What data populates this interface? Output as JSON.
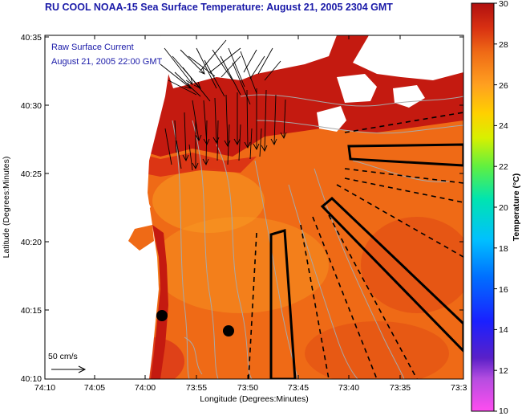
{
  "title": "RU COOL  NOAA-15  Sea Surface Temperature:  August 21, 2005 2304 GMT",
  "legend": {
    "line1": "Raw Surface Current",
    "line2": "August 21, 2005 22:00 GMT",
    "scale_label": "50 cm/s"
  },
  "x_axis": {
    "label": "Longitude (Degrees:Minutes)",
    "ticks": [
      "74:10",
      "74:05",
      "74:00",
      "73:55",
      "73:50",
      "73:45",
      "73:40",
      "73:35",
      "73:3"
    ]
  },
  "y_axis": {
    "label": "Latitude (Degrees:Minutes)",
    "ticks": [
      "40:35",
      "40:30",
      "40:25",
      "40:20",
      "40:15",
      "40:10"
    ]
  },
  "colorbar": {
    "label": "Temperature (°C)",
    "ticks": [
      "30",
      "28",
      "26",
      "24",
      "22",
      "20",
      "18",
      "16",
      "14",
      "12",
      "10"
    ],
    "min": 10,
    "max": 30
  },
  "colors": {
    "title": "#1a1aa8",
    "land": "#ffffff",
    "warm": "#c41a10",
    "sst_main": "#ef6a16"
  }
}
